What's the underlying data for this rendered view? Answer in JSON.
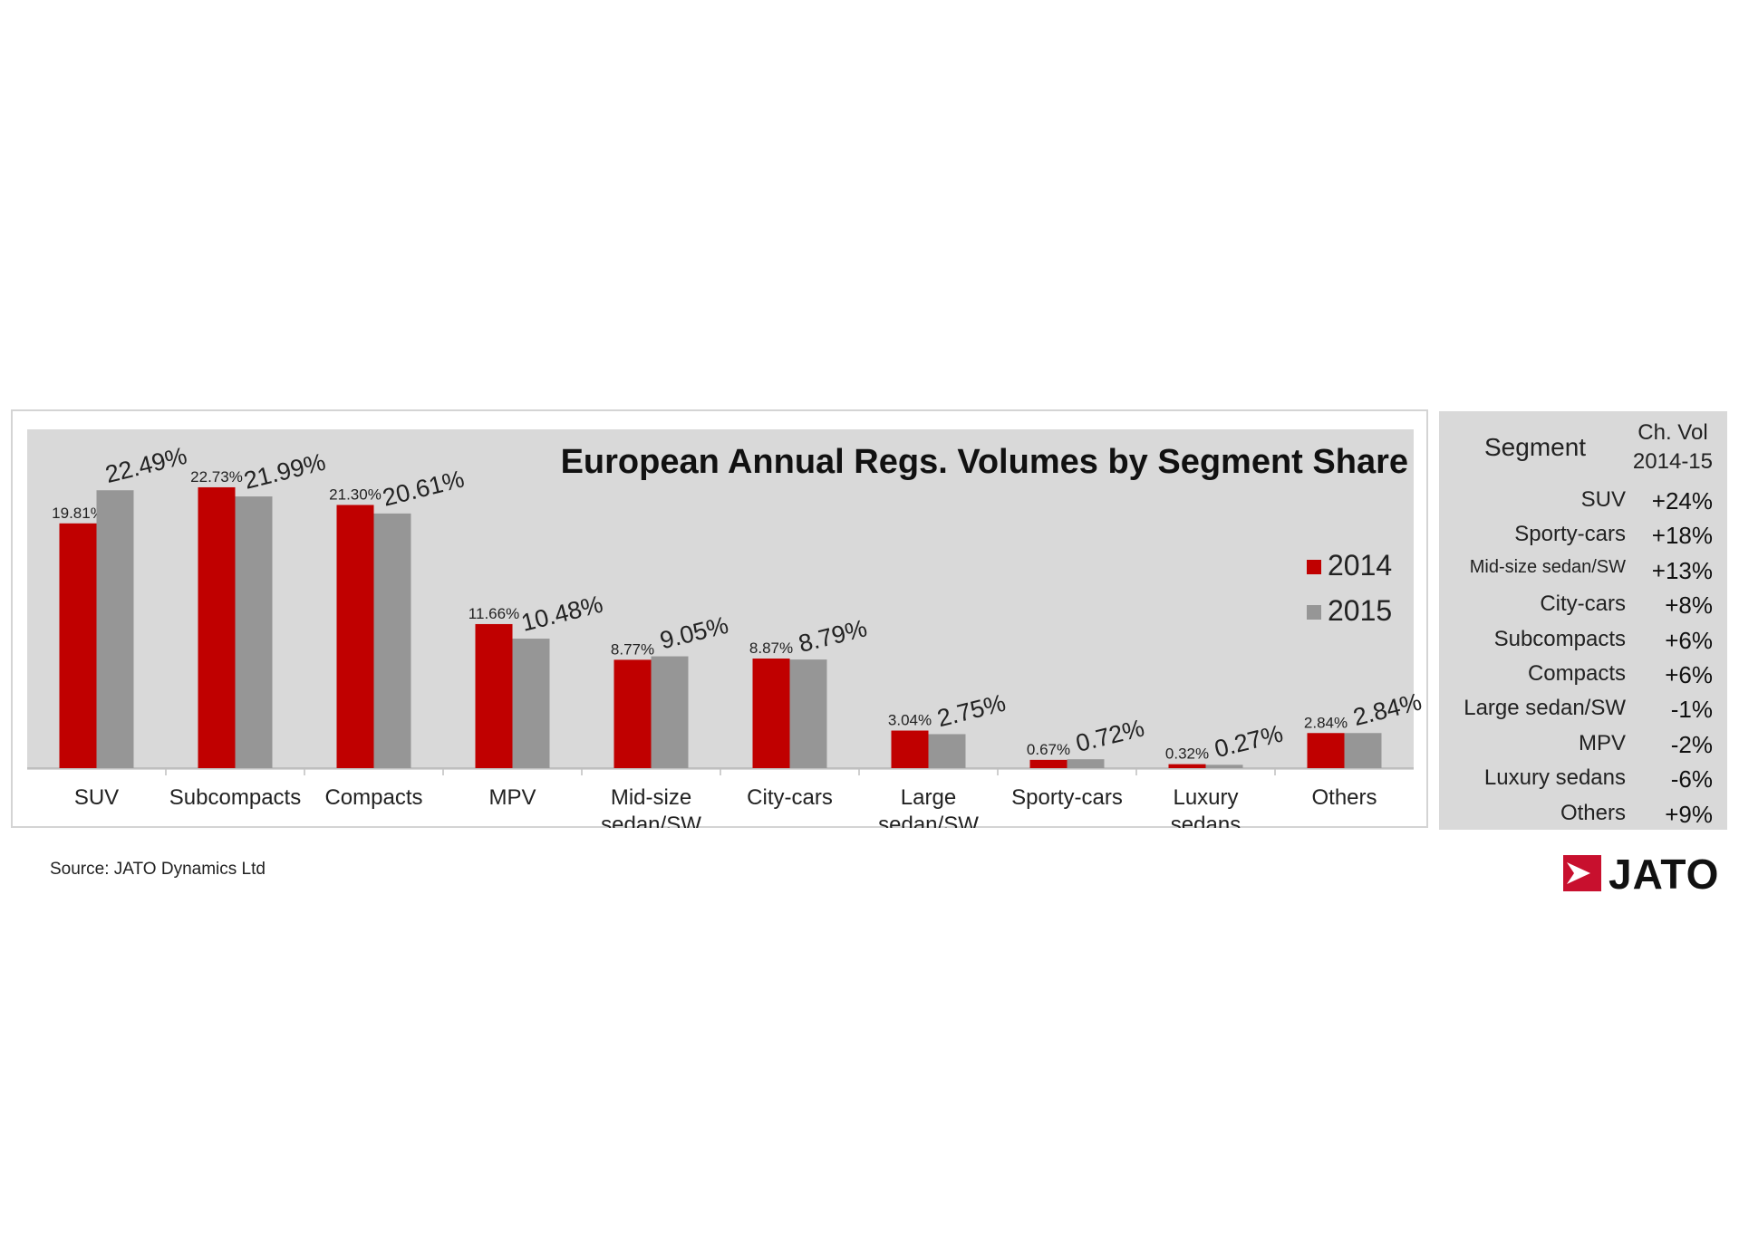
{
  "chart_data": {
    "type": "bar",
    "title": "European Annual Regs. Volumes by Segment Share",
    "categories": [
      "SUV",
      "Subcompacts",
      "Compacts",
      "MPV",
      "Mid-size\nsedan/SW",
      "City-cars",
      "Large\nsedan/SW",
      "Sporty-cars",
      "Luxury\nsedans",
      "Others"
    ],
    "series": [
      {
        "name": "2014",
        "color": "#c00000",
        "values": [
          19.81,
          22.73,
          21.3,
          11.66,
          8.77,
          8.87,
          3.04,
          0.67,
          0.32,
          2.84
        ],
        "labels": [
          "19.81%",
          "22.73%",
          "21.30%",
          "11.66%",
          "8.77%",
          "8.87%",
          "3.04%",
          "0.67%",
          "0.32%",
          "2.84%"
        ]
      },
      {
        "name": "2015",
        "color": "#969696",
        "values": [
          22.49,
          21.99,
          20.61,
          10.48,
          9.05,
          8.79,
          2.75,
          0.72,
          0.27,
          2.84
        ],
        "labels": [
          "22.49%",
          "21.99%",
          "20.61%",
          "10.48%",
          "9.05%",
          "8.79%",
          "2.75%",
          "0.72%",
          "0.27%",
          "2.84%"
        ]
      }
    ],
    "ylim": [
      0,
      25
    ],
    "xlabel": "",
    "ylabel": "",
    "grid": false,
    "legend": "right"
  },
  "side_table": {
    "header_segment": "Segment",
    "header_change_1": "Ch. Vol",
    "header_change_2": "2014-15",
    "rows": [
      {
        "segment": "SUV",
        "change": "+24%"
      },
      {
        "segment": "Sporty-cars",
        "change": "+18%"
      },
      {
        "segment": "Mid-size sedan/SW",
        "change": "+13%"
      },
      {
        "segment": "City-cars",
        "change": "+8%"
      },
      {
        "segment": "Subcompacts",
        "change": "+6%"
      },
      {
        "segment": "Compacts",
        "change": "+6%"
      },
      {
        "segment": "Large sedan/SW",
        "change": "-1%"
      },
      {
        "segment": "MPV",
        "change": "-2%"
      },
      {
        "segment": "Luxury sedans",
        "change": "-6%"
      },
      {
        "segment": "Others",
        "change": "+9%"
      }
    ]
  },
  "footer": {
    "source": "Source: JATO Dynamics Ltd",
    "brand": "JATO"
  }
}
